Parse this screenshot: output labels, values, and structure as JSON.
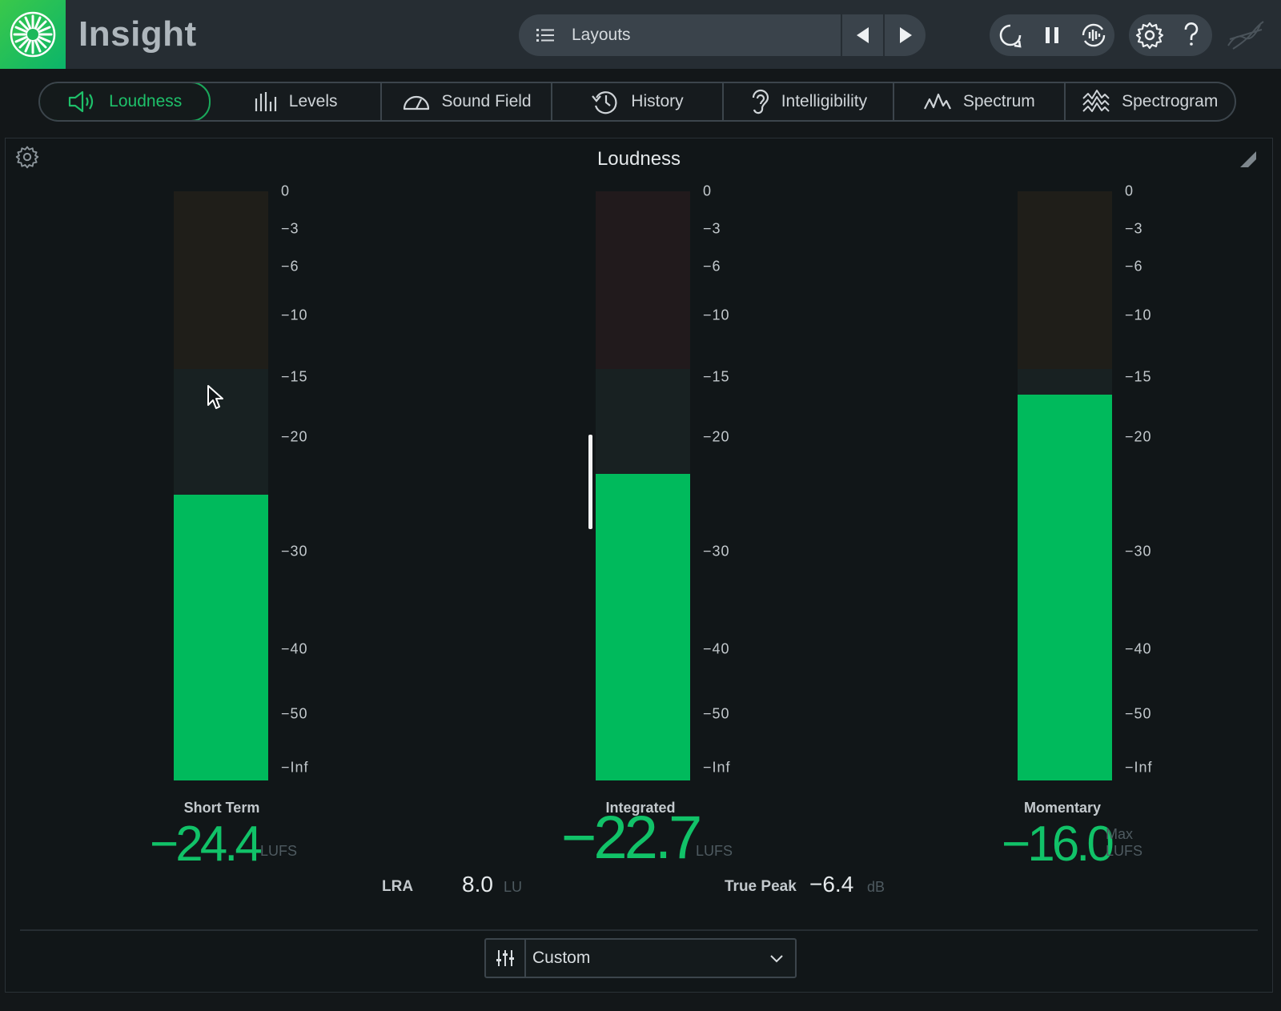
{
  "app": {
    "title": "Insight",
    "layouts_label": "Layouts"
  },
  "toolbar": {
    "prev_icon": "prev-icon",
    "next_icon": "next-icon",
    "buttons": [
      "loop-icon",
      "pause-icon",
      "reset-icon",
      "settings-icon",
      "help-icon"
    ]
  },
  "tabs": [
    {
      "label": "Loudness",
      "icon": "speaker-icon",
      "active": true
    },
    {
      "label": "Levels",
      "icon": "levels-icon",
      "active": false
    },
    {
      "label": "Sound Field",
      "icon": "soundfield-icon",
      "active": false
    },
    {
      "label": "History",
      "icon": "history-icon",
      "active": false
    },
    {
      "label": "Intelligibility",
      "icon": "ear-icon",
      "active": false
    },
    {
      "label": "Spectrum",
      "icon": "spectrum-icon",
      "active": false
    },
    {
      "label": "Spectrogram",
      "icon": "spectrogram-icon",
      "active": false
    }
  ],
  "panel": {
    "title": "Loudness"
  },
  "scale_ticks": [
    "0",
    "−3",
    "−6",
    "−10",
    "−15",
    "−20",
    "−30",
    "−40",
    "−50",
    "−Inf"
  ],
  "meters": {
    "short_term": {
      "name": "Short Term",
      "value": "−24.4",
      "unit": "LUFS",
      "level_fraction": 0.485
    },
    "integrated": {
      "name": "Integrated",
      "value": "−22.7",
      "unit": "LUFS",
      "level_fraction": 0.52
    },
    "momentary": {
      "name": "Momentary",
      "value": "−16.0",
      "unit_top": "Max",
      "unit": "LUFS",
      "level_fraction": 0.655
    }
  },
  "readouts": {
    "lra_label": "LRA",
    "lra_value": "8.0",
    "lra_unit": "LU",
    "true_peak_label": "True Peak",
    "true_peak_value": "−6.4",
    "true_peak_unit": "dB"
  },
  "preset": {
    "value": "Custom"
  },
  "colors": {
    "accent": "#00ba5c",
    "logo": "#2ec05a",
    "background": "#111618"
  }
}
